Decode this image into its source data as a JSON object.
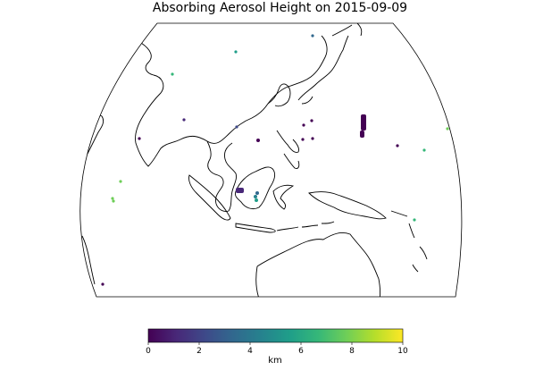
{
  "title": "Absorbing Aerosol Height on 2015-09-09",
  "colorbar": {
    "label": "km",
    "ticks": [
      "0",
      "2",
      "4",
      "6",
      "8",
      "10"
    ],
    "colormap": "viridis",
    "stops": [
      "#440154",
      "#482878",
      "#3e4989",
      "#31688e",
      "#26828e",
      "#1f9e89",
      "#35b779",
      "#6ece58",
      "#b5de2b",
      "#fde725"
    ]
  },
  "map": {
    "projection": "orthographic-clipped",
    "coastline_color": "#000000",
    "background": "#ffffff"
  },
  "markers": {
    "description_colors": {
      "low": "#440154",
      "mid": "#26828e",
      "high": "#6ece58"
    }
  }
}
